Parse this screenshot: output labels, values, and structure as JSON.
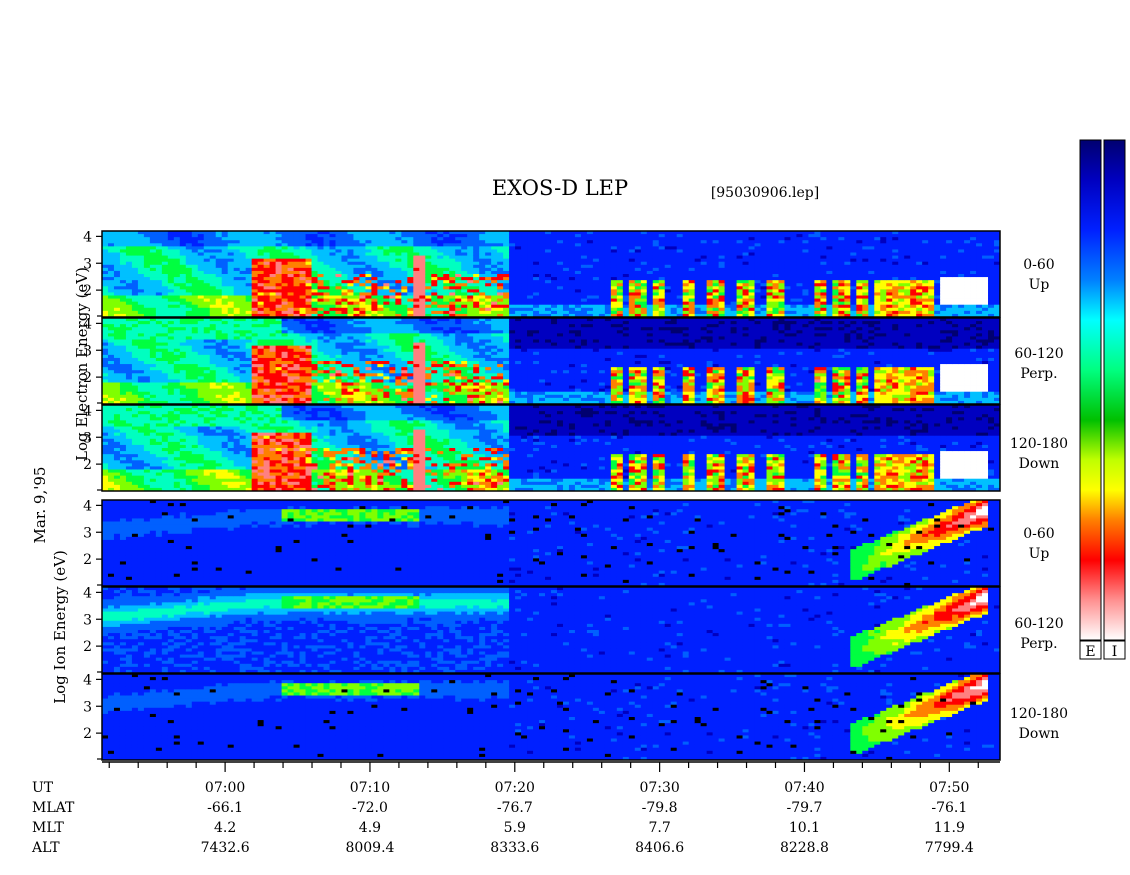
{
  "chart_data": {
    "type": "heatmap",
    "title": "EXOS-D LEP",
    "file_label": "[95030906.lep]",
    "date_label": "Mar. 9,'95",
    "groups": [
      {
        "name": "Electron",
        "ylabel_parts": [
          "Log",
          "Electron",
          "Energy",
          "(eV)"
        ],
        "ylim": [
          1,
          4.2
        ],
        "yticks": [
          "4",
          "3",
          "2"
        ],
        "panels": [
          {
            "channel": "0-60",
            "direction": "Up"
          },
          {
            "channel": "60-120",
            "direction": "Perp."
          },
          {
            "channel": "120-180",
            "direction": "Down"
          }
        ]
      },
      {
        "name": "Ion",
        "ylabel_parts": [
          "Log",
          "Ion",
          "Energy",
          "(eV)"
        ],
        "ylim": [
          1,
          4.2
        ],
        "yticks": [
          "4",
          "3",
          "2"
        ],
        "panels": [
          {
            "channel": "0-60",
            "direction": "Up"
          },
          {
            "channel": "60-120",
            "direction": "Perp."
          },
          {
            "channel": "120-180",
            "direction": "Down"
          }
        ]
      }
    ],
    "x_axis": {
      "labels": [
        "UT",
        "MLAT",
        "MLT",
        "ALT"
      ],
      "ticks": [
        {
          "UT": "07:00",
          "MLAT": "-66.1",
          "MLT": "4.2",
          "ALT": "7432.6"
        },
        {
          "UT": "07:10",
          "MLAT": "-72.0",
          "MLT": "4.9",
          "ALT": "8009.4"
        },
        {
          "UT": "07:20",
          "MLAT": "-76.7",
          "MLT": "5.9",
          "ALT": "8333.6"
        },
        {
          "UT": "07:30",
          "MLAT": "-79.8",
          "MLT": "7.7",
          "ALT": "8406.6"
        },
        {
          "UT": "07:40",
          "MLAT": "-79.7",
          "MLT": "10.1",
          "ALT": "8228.8"
        },
        {
          "UT": "07:50",
          "MLAT": "-76.1",
          "MLT": "11.9",
          "ALT": "7799.4"
        }
      ],
      "range_minutes_ut": [
        411.5,
        473.5
      ]
    },
    "colorbars": [
      {
        "label": "E"
      },
      {
        "label": "I"
      }
    ],
    "colormap": [
      "#ffffff",
      "#ff8080",
      "#ff0000",
      "#ff8000",
      "#ffff00",
      "#80ff00",
      "#00ff40",
      "#00ffc0",
      "#00c0ff",
      "#0060ff",
      "#0020ff",
      "#0000c0",
      "#000070"
    ],
    "intensity_profiles": {
      "electron": {
        "features": "Broad green/red auroral electron fluxes from 06:55 to 07:19, patchy red/white bursts after 07:20, bright white patch near 07:50 at 2 to 2.5 log eV"
      },
      "ion": {
        "features": "Green/yellow ion band near 3.5 log eV from 07:04 to 07:13, blue background after 07:20, intense white/red cusp ion dispersion rising to 3.7 log eV near 07:50"
      }
    }
  }
}
